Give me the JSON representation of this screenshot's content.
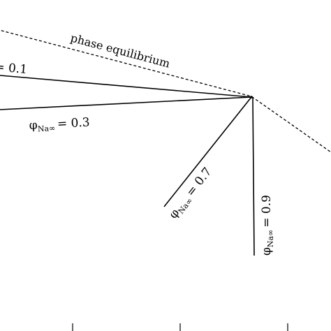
{
  "diagram": {
    "phase_label": "phase equilibrium",
    "curves": [
      {
        "id": "c01",
        "symbol": "",
        "sub": "",
        "eq": "= 0.1"
      },
      {
        "id": "c03",
        "symbol": "φ",
        "sub": "Na∞",
        "eq": "= 0.3"
      },
      {
        "id": "c07",
        "symbol": "φ",
        "sub": "Na∞",
        "eq": "= 0.7"
      },
      {
        "id": "c09",
        "symbol": "φ",
        "sub": "Na∞",
        "eq": "= 0.9"
      }
    ]
  },
  "colors": {
    "ink": "#000000",
    "background": "#ffffff"
  }
}
